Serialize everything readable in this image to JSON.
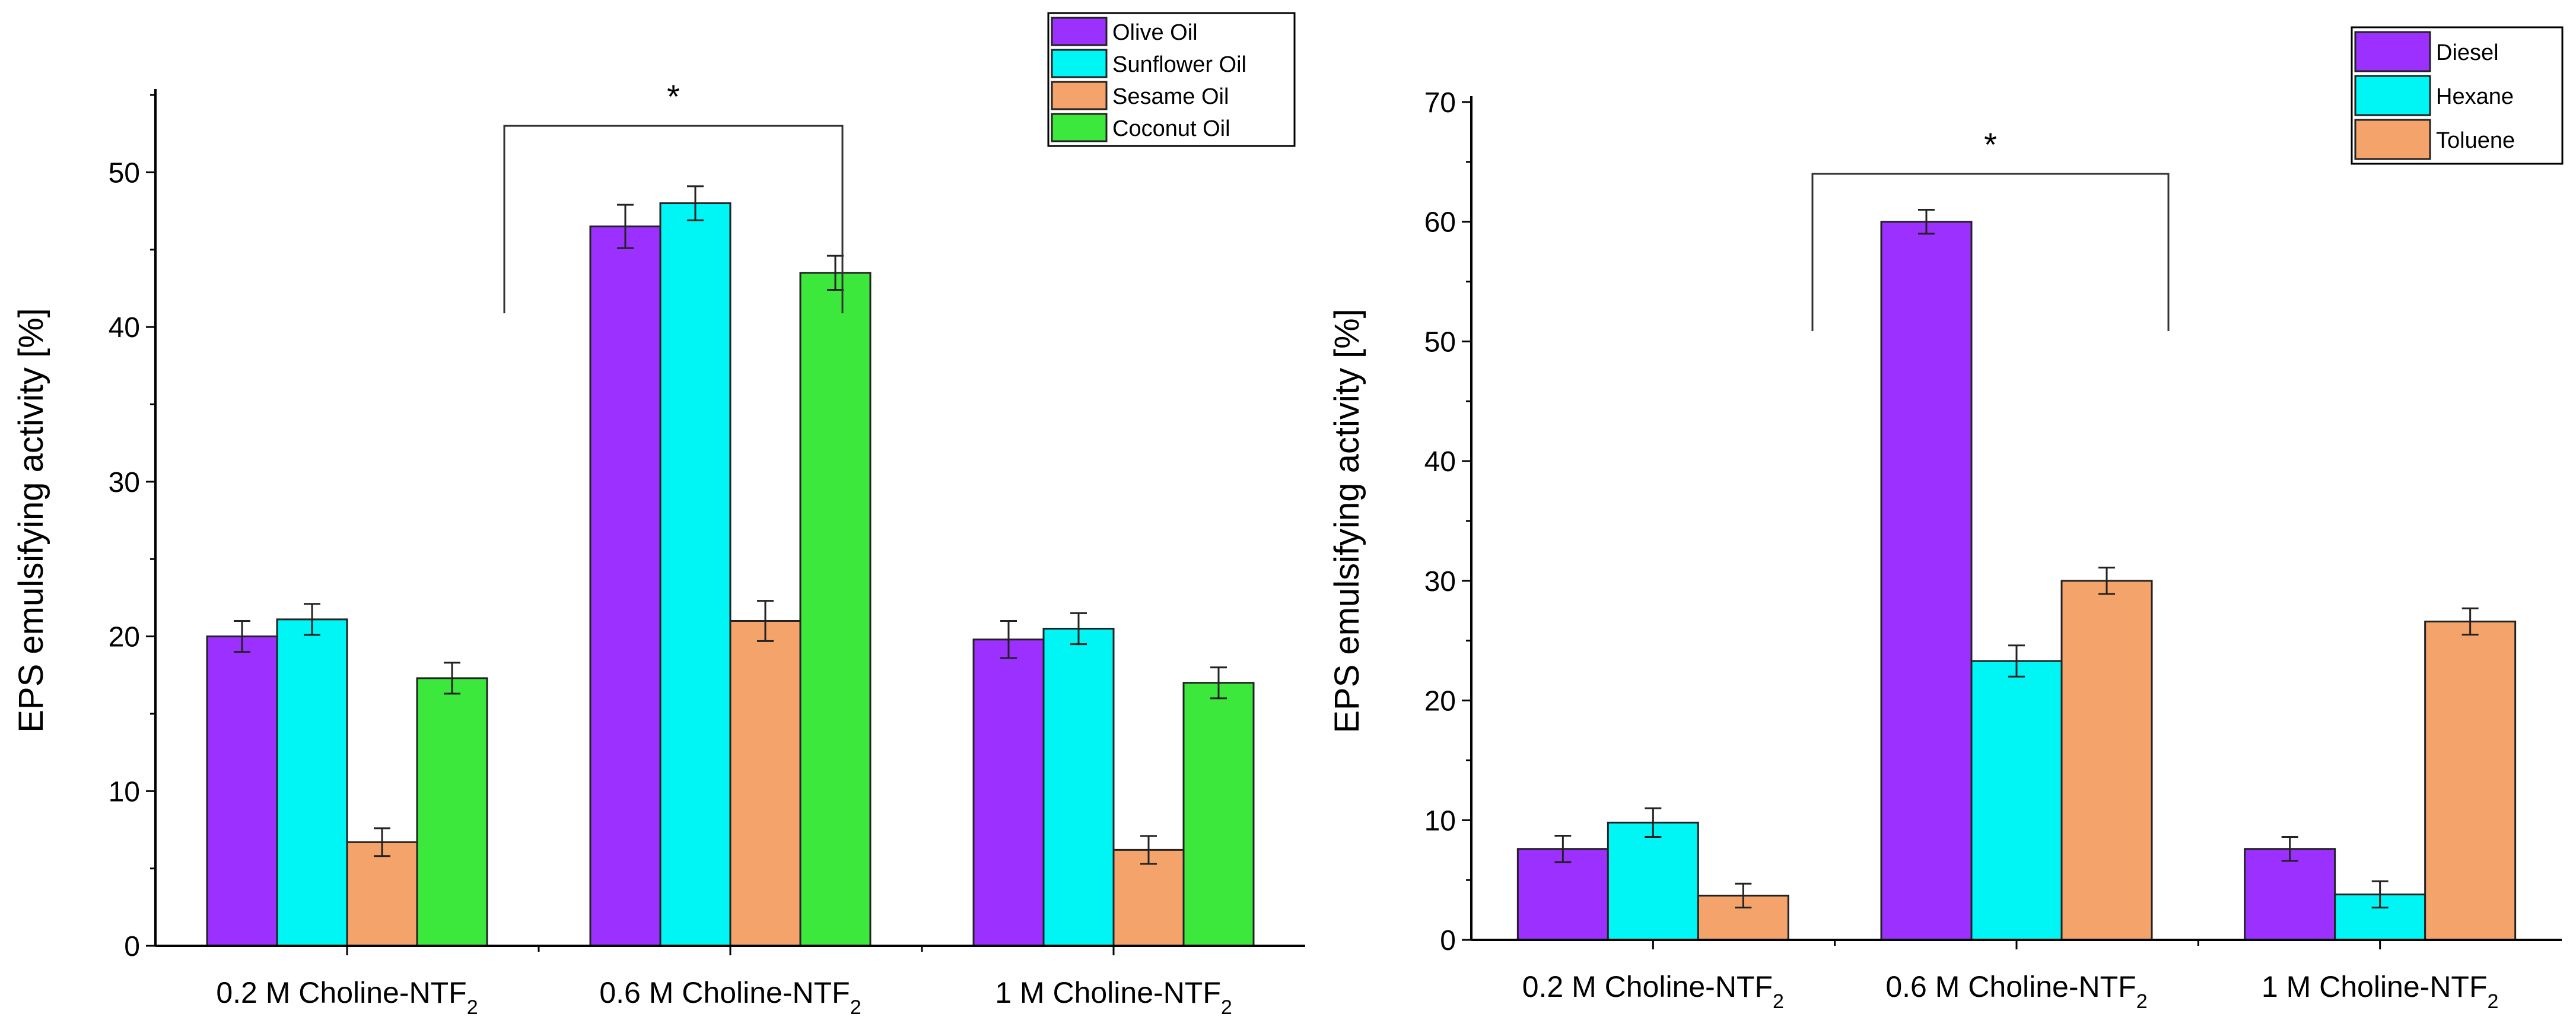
{
  "chart_data": [
    {
      "type": "bar",
      "title": "",
      "xlabel": "",
      "ylabel": "EPS emulsifying activity [%]",
      "ylim": [
        0,
        55
      ],
      "yticks": [
        0,
        10,
        20,
        30,
        40,
        50
      ],
      "grid": false,
      "legend_position": "top-right",
      "categories": [
        {
          "base": "0.2 M Choline-NTF",
          "sub": "2"
        },
        {
          "base": "0.6 M Choline-NTF",
          "sub": "2"
        },
        {
          "base": "1 M Choline-NTF",
          "sub": "2"
        }
      ],
      "series": [
        {
          "name": "Olive Oil",
          "color": "#9b30ff",
          "values": [
            20.0,
            46.5,
            19.8
          ],
          "errors": [
            1.0,
            1.4,
            1.2
          ]
        },
        {
          "name": "Sunflower Oil",
          "color": "#00f5f5",
          "values": [
            21.1,
            48.0,
            20.5
          ],
          "errors": [
            1.0,
            1.1,
            1.0
          ]
        },
        {
          "name": "Sesame Oil",
          "color": "#f4a46a",
          "values": [
            6.7,
            21.0,
            6.2
          ],
          "errors": [
            0.9,
            1.3,
            0.9
          ]
        },
        {
          "name": "Coconut Oil",
          "color": "#3de83d",
          "values": [
            17.3,
            43.5,
            17.0
          ],
          "errors": [
            1.0,
            1.1,
            1.0
          ]
        }
      ],
      "significance": {
        "label": "*",
        "from_category": 1,
        "to_category": 1,
        "level": 53
      }
    },
    {
      "type": "bar",
      "title": "",
      "xlabel": "",
      "ylabel": "EPS emulsifying activity [%]",
      "ylim": [
        0,
        70
      ],
      "yticks": [
        0,
        10,
        20,
        30,
        40,
        50,
        60,
        70
      ],
      "grid": false,
      "legend_position": "top-right",
      "categories": [
        {
          "base": "0.2 M Choline-NTF",
          "sub": "2"
        },
        {
          "base": "0.6 M Choline-NTF",
          "sub": "2"
        },
        {
          "base": "1 M Choline-NTF",
          "sub": "2"
        }
      ],
      "series": [
        {
          "name": "Diesel",
          "color": "#9b30ff",
          "values": [
            7.6,
            60.0,
            7.6
          ],
          "errors": [
            1.1,
            1.0,
            1.0
          ]
        },
        {
          "name": "Hexane",
          "color": "#00f5f5",
          "values": [
            9.8,
            23.3,
            3.8
          ],
          "errors": [
            1.2,
            1.3,
            1.1
          ]
        },
        {
          "name": "Toluene",
          "color": "#f4a46a",
          "values": [
            3.7,
            30.0,
            26.6
          ],
          "errors": [
            1.0,
            1.1,
            1.1
          ]
        }
      ],
      "significance": {
        "label": "*",
        "from_category": 1,
        "to_category": 1,
        "level": 64
      }
    }
  ]
}
